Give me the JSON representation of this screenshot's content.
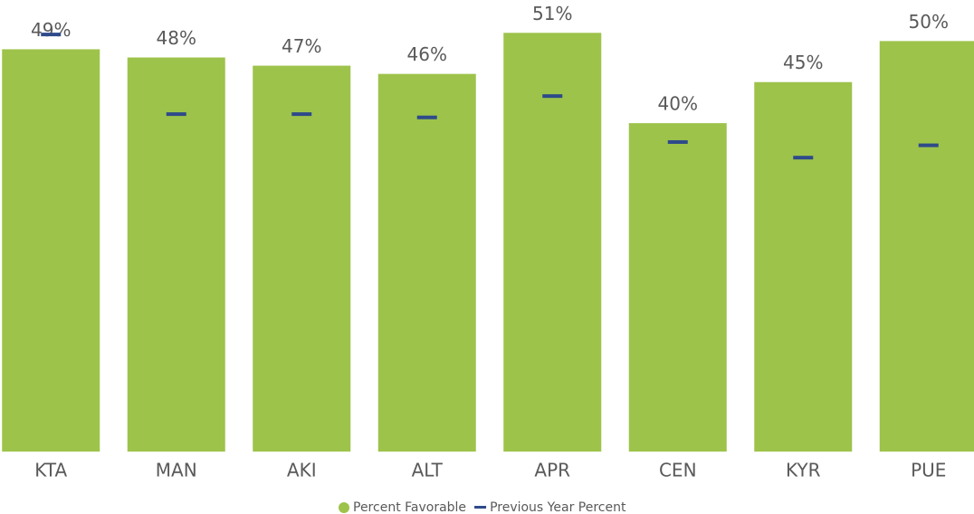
{
  "chart_data": {
    "type": "bar",
    "categories": [
      "KTA",
      "MAN",
      "AKI",
      "ALT",
      "APR",
      "CEN",
      "KYR",
      "PUE"
    ],
    "series": [
      {
        "name": "Percent Favorable",
        "color": "#9dc34b",
        "values": [
          49,
          48,
          47,
          46,
          51,
          40,
          45,
          50
        ],
        "value_labels": [
          "49%",
          "48%",
          "47%",
          "46%",
          "51%",
          "40%",
          "45%",
          "50%"
        ]
      },
      {
        "name": "Previous Year Percent",
        "color": "#2e4a8a",
        "values": [
          50.8,
          41.1,
          41.1,
          40.7,
          43.3,
          37.7,
          35.8,
          37.3
        ]
      }
    ],
    "ylim": [
      0,
      55
    ]
  }
}
